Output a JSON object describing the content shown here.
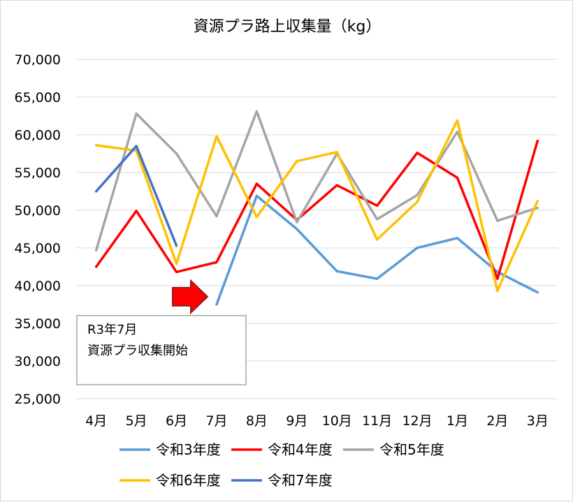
{
  "chart_data": {
    "type": "line",
    "title": "資源プラ路上収集量（kg）",
    "xlabel": "",
    "ylabel": "",
    "categories": [
      "4月",
      "5月",
      "6月",
      "7月",
      "8月",
      "9月",
      "10月",
      "11月",
      "12月",
      "1月",
      "2月",
      "3月"
    ],
    "ylim": [
      25000,
      70000
    ],
    "yticks": [
      25000,
      30000,
      35000,
      40000,
      45000,
      50000,
      55000,
      60000,
      65000,
      70000
    ],
    "ytick_labels": [
      "25,000",
      "30,000",
      "35,000",
      "40,000",
      "45,000",
      "50,000",
      "55,000",
      "60,000",
      "65,000",
      "70,000"
    ],
    "grid": true,
    "legend_position": "bottom",
    "series": [
      {
        "name": "令和3年度",
        "color": "#5b9bd5",
        "values": [
          null,
          null,
          null,
          37500,
          51900,
          47500,
          41900,
          40900,
          45000,
          46300,
          41800,
          39100
        ]
      },
      {
        "name": "令和4年度",
        "color": "#ff0000",
        "values": [
          42500,
          49900,
          41800,
          43100,
          53500,
          48700,
          53300,
          50600,
          57600,
          54300,
          40900,
          59200
        ]
      },
      {
        "name": "令和5年度",
        "color": "#a5a5a5",
        "values": [
          44700,
          62800,
          57500,
          49200,
          63100,
          48400,
          57500,
          48800,
          52000,
          60400,
          48600,
          50300
        ]
      },
      {
        "name": "令和6年度",
        "color": "#ffc000",
        "values": [
          58600,
          57900,
          42900,
          59800,
          49100,
          56500,
          57700,
          46100,
          51100,
          61900,
          39300,
          51200
        ]
      },
      {
        "name": "令和7年度",
        "color": "#4472c4",
        "values": [
          52500,
          58500,
          45300,
          null,
          null,
          null,
          null,
          null,
          null,
          null,
          null,
          null
        ]
      }
    ],
    "annotation": {
      "lines": [
        "R3年7月",
        "資源プラ収集開始"
      ],
      "arrow_color": "#ff0000",
      "arrow_points_to": "7月"
    }
  }
}
